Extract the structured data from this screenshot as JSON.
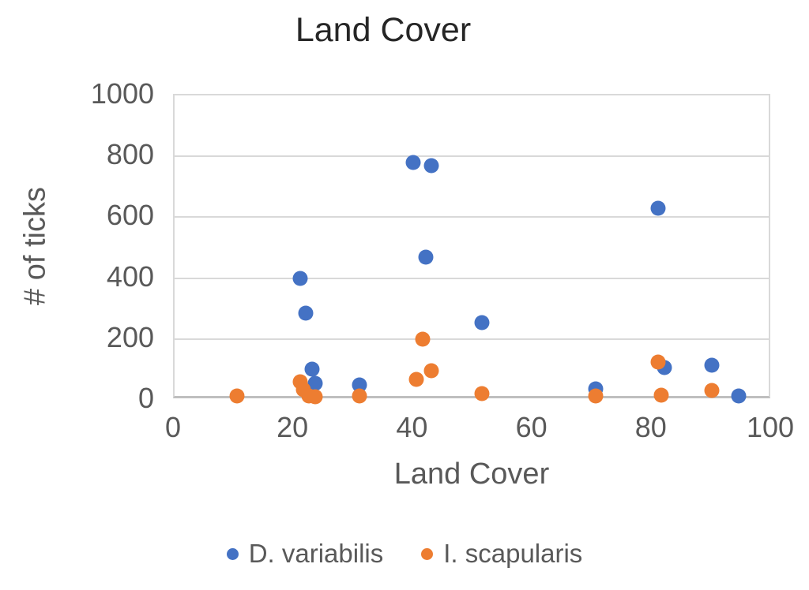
{
  "chart_data": {
    "type": "scatter",
    "title": "Land Cover",
    "xlabel": "Land Cover",
    "ylabel": "# of ticks",
    "xlim": [
      0,
      100
    ],
    "ylim": [
      0,
      1000
    ],
    "xticks": [
      0,
      20,
      40,
      60,
      80,
      100
    ],
    "yticks": [
      0,
      200,
      400,
      600,
      800,
      1000
    ],
    "grid": "horizontal",
    "legend_position": "bottom",
    "series": [
      {
        "name": "D. variabilis",
        "color": "#4472C4",
        "points": [
          [
            21,
            400
          ],
          [
            22,
            285
          ],
          [
            23,
            100
          ],
          [
            23.5,
            55
          ],
          [
            31,
            50
          ],
          [
            40,
            780
          ],
          [
            42,
            470
          ],
          [
            43,
            770
          ],
          [
            51.5,
            255
          ],
          [
            70.5,
            35
          ],
          [
            81,
            630
          ],
          [
            82,
            105
          ],
          [
            90,
            115
          ],
          [
            94.5,
            12
          ]
        ]
      },
      {
        "name": "I. scapularis",
        "color": "#ED7D31",
        "points": [
          [
            10.5,
            13
          ],
          [
            21,
            60
          ],
          [
            21.5,
            33
          ],
          [
            22.5,
            13
          ],
          [
            23.5,
            10
          ],
          [
            31,
            13
          ],
          [
            40.5,
            68
          ],
          [
            41.5,
            200
          ],
          [
            43,
            95
          ],
          [
            51.5,
            22
          ],
          [
            70.5,
            14
          ],
          [
            81,
            125
          ],
          [
            81.5,
            15
          ],
          [
            90,
            30
          ]
        ]
      }
    ]
  }
}
